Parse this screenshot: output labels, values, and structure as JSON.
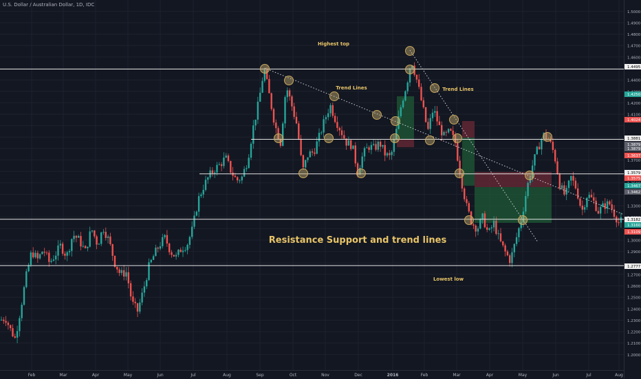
{
  "title": "U.S. Dollar / Australian Dollar, 1D, IDC",
  "chart_data": {
    "type": "candlestick",
    "title": "U.S. Dollar / Australian Dollar, 1D, IDC",
    "ylim": [
      1.19,
      1.505
    ],
    "y_ticks": [
      "1.5000",
      "1.4900",
      "1.4800",
      "1.4700",
      "1.4600",
      "1.4400",
      "1.4300",
      "1.4200",
      "1.4100",
      "1.3700",
      "1.3600",
      "1.3500",
      "1.3300",
      "1.3200",
      "1.3000",
      "1.2900",
      "1.2700",
      "1.2600",
      "1.2500",
      "1.2400",
      "1.2300",
      "1.2200",
      "1.2100",
      "1.2000"
    ],
    "x_ticks": [
      "Feb",
      "Mar",
      "Apr",
      "May",
      "Jun",
      "Jul",
      "Aug",
      "Sep",
      "Oct",
      "Nov",
      "Dec",
      "2016",
      "Feb",
      "Mar",
      "Apr",
      "May",
      "Jun",
      "Jul",
      "Aug"
    ],
    "horizontal_levels": [
      1.4495,
      1.3881,
      1.3579,
      1.3182,
      1.2777
    ],
    "price_tags": [
      {
        "text": "1.4495",
        "kind": "level"
      },
      {
        "text": "1.4250",
        "kind": "green"
      },
      {
        "text": "1.4024",
        "kind": "red"
      },
      {
        "text": "1.3881",
        "kind": "level"
      },
      {
        "text": "1.3879",
        "kind": "gray"
      },
      {
        "text": "1.3879",
        "kind": "gray"
      },
      {
        "text": "1.3637",
        "kind": "red"
      },
      {
        "text": "1.3579",
        "kind": "level"
      },
      {
        "text": "1.3575",
        "kind": "red"
      },
      {
        "text": "1.3467",
        "kind": "green"
      },
      {
        "text": "1.3462",
        "kind": "gray"
      },
      {
        "text": "1.3182",
        "kind": "level"
      },
      {
        "text": "1.3160",
        "kind": "green"
      },
      {
        "text": "1.3109",
        "kind": "red"
      },
      {
        "text": "1.2777",
        "kind": "level"
      }
    ],
    "annotations": [
      "Highest top",
      "Trend Lines",
      "Trend Lines",
      "Resistance Support and trend lines",
      "Lowest low"
    ],
    "price_path": [
      [
        0,
        1.23
      ],
      [
        8,
        1.232
      ],
      [
        15,
        1.222
      ],
      [
        22,
        1.214
      ],
      [
        30,
        1.24
      ],
      [
        38,
        1.268
      ],
      [
        46,
        1.29
      ],
      [
        55,
        1.283
      ],
      [
        63,
        1.292
      ],
      [
        72,
        1.28
      ],
      [
        80,
        1.287
      ],
      [
        88,
        1.295
      ],
      [
        97,
        1.286
      ],
      [
        106,
        1.305
      ],
      [
        115,
        1.3
      ],
      [
        124,
        1.29
      ],
      [
        133,
        1.31
      ],
      [
        142,
        1.296
      ],
      [
        150,
        1.311
      ],
      [
        158,
        1.3
      ],
      [
        167,
        1.28
      ],
      [
        175,
        1.27
      ],
      [
        184,
        1.272
      ],
      [
        192,
        1.245
      ],
      [
        200,
        1.238
      ],
      [
        208,
        1.255
      ],
      [
        216,
        1.276
      ],
      [
        224,
        1.287
      ],
      [
        232,
        1.296
      ],
      [
        240,
        1.302
      ],
      [
        248,
        1.29
      ],
      [
        256,
        1.285
      ],
      [
        264,
        1.293
      ],
      [
        272,
        1.296
      ],
      [
        280,
        1.31
      ],
      [
        288,
        1.335
      ],
      [
        296,
        1.347
      ],
      [
        304,
        1.356
      ],
      [
        312,
        1.362
      ],
      [
        320,
        1.366
      ],
      [
        328,
        1.372
      ],
      [
        336,
        1.36
      ],
      [
        344,
        1.352
      ],
      [
        352,
        1.355
      ],
      [
        360,
        1.37
      ],
      [
        368,
        1.398
      ],
      [
        376,
        1.42
      ],
      [
        384,
        1.45
      ],
      [
        392,
        1.425
      ],
      [
        400,
        1.4
      ],
      [
        408,
        1.385
      ],
      [
        416,
        1.435
      ],
      [
        424,
        1.418
      ],
      [
        432,
        1.4
      ],
      [
        440,
        1.36
      ],
      [
        448,
        1.375
      ],
      [
        456,
        1.377
      ],
      [
        464,
        1.39
      ],
      [
        472,
        1.405
      ],
      [
        480,
        1.418
      ],
      [
        488,
        1.405
      ],
      [
        496,
        1.395
      ],
      [
        504,
        1.385
      ],
      [
        512,
        1.383
      ],
      [
        520,
        1.36
      ],
      [
        528,
        1.375
      ],
      [
        536,
        1.382
      ],
      [
        544,
        1.38
      ],
      [
        552,
        1.385
      ],
      [
        560,
        1.375
      ],
      [
        568,
        1.372
      ],
      [
        576,
        1.395
      ],
      [
        584,
        1.42
      ],
      [
        592,
        1.438
      ],
      [
        598,
        1.458
      ],
      [
        606,
        1.44
      ],
      [
        614,
        1.418
      ],
      [
        622,
        1.395
      ],
      [
        630,
        1.415
      ],
      [
        638,
        1.4
      ],
      [
        646,
        1.39
      ],
      [
        654,
        1.395
      ],
      [
        662,
        1.385
      ],
      [
        670,
        1.355
      ],
      [
        678,
        1.33
      ],
      [
        686,
        1.315
      ],
      [
        694,
        1.31
      ],
      [
        702,
        1.32
      ],
      [
        710,
        1.305
      ],
      [
        718,
        1.315
      ],
      [
        726,
        1.3
      ],
      [
        734,
        1.29
      ],
      [
        742,
        1.282
      ],
      [
        750,
        1.3
      ],
      [
        758,
        1.318
      ],
      [
        766,
        1.345
      ],
      [
        774,
        1.365
      ],
      [
        782,
        1.38
      ],
      [
        790,
        1.392
      ],
      [
        798,
        1.388
      ],
      [
        806,
        1.375
      ],
      [
        814,
        1.348
      ],
      [
        822,
        1.338
      ],
      [
        830,
        1.355
      ],
      [
        838,
        1.345
      ],
      [
        846,
        1.325
      ],
      [
        854,
        1.34
      ],
      [
        862,
        1.335
      ],
      [
        870,
        1.325
      ],
      [
        878,
        1.33
      ],
      [
        886,
        1.332
      ],
      [
        894,
        1.322
      ],
      [
        900,
        1.315
      ],
      [
        906,
        1.318
      ]
    ]
  },
  "axis_range": {
    "y_top": 1.505,
    "y_bottom": 1.19
  }
}
